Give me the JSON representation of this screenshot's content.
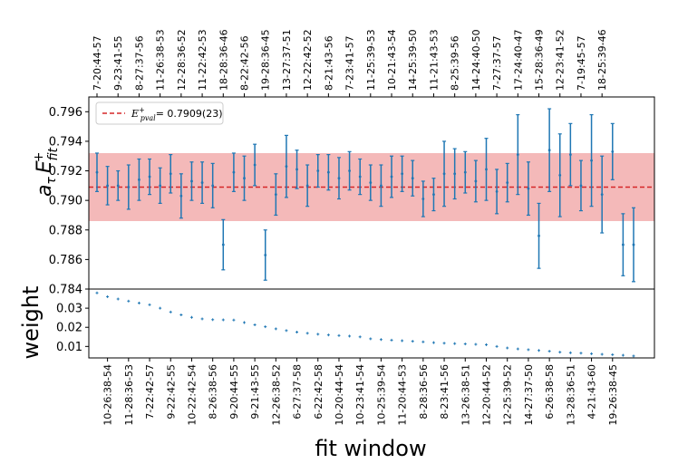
{
  "chart_data": {
    "type": "errorbar",
    "xlabel": "fit window",
    "top_panel": {
      "ylabel": "a_τ E^+_fit",
      "ylim": [
        0.784,
        0.797
      ],
      "yticks": [
        0.784,
        0.786,
        0.788,
        0.79,
        0.792,
        0.794,
        0.796
      ],
      "ytick_labels": [
        "0.784",
        "0.786",
        "0.788",
        "0.790",
        "0.792",
        "0.794",
        "0.796"
      ],
      "band": {
        "center": 0.7909,
        "lower": 0.7886,
        "upper": 0.7932,
        "color": "#f4b9b9"
      },
      "reference_line": {
        "value": 0.7909,
        "color": "#d62728"
      },
      "legend": {
        "prefix": "E",
        "superscript": "+",
        "subscript": "pval",
        "value": "= 0.7909(23)",
        "position": "top-left"
      },
      "top_tick_labels": [
        "7-20:44-57",
        "9-23:41-55",
        "8-27:37-56",
        "11-26:38-53",
        "12-28:36-52",
        "11-22:42-53",
        "18-28:36-46",
        "8-22:42-56",
        "19-28:36-45",
        "13-27:37-51",
        "12-22:42-52",
        "8-21:43-56",
        "7-23:41-57",
        "11-25:39-53",
        "10-21:43-54",
        "14-25:39-50",
        "11-21:43-53",
        "8-25:39-56",
        "14-24:40-50",
        "7-27:37-57",
        "17-24:40-47",
        "15-28:36-49",
        "12-23:41-52",
        "7-19:45-57",
        "18-25:39-46"
      ],
      "points": [
        {
          "value": 0.7919,
          "err": 0.0013
        },
        {
          "value": 0.791,
          "err": 0.0013
        },
        {
          "value": 0.791,
          "err": 0.001
        },
        {
          "value": 0.7909,
          "err": 0.0015
        },
        {
          "value": 0.7914,
          "err": 0.0014
        },
        {
          "value": 0.7916,
          "err": 0.0012
        },
        {
          "value": 0.791,
          "err": 0.0012
        },
        {
          "value": 0.7918,
          "err": 0.0013
        },
        {
          "value": 0.7903,
          "err": 0.0015
        },
        {
          "value": 0.7913,
          "err": 0.0013
        },
        {
          "value": 0.7912,
          "err": 0.0014
        },
        {
          "value": 0.791,
          "err": 0.0015
        },
        {
          "value": 0.787,
          "err": 0.0017
        },
        {
          "value": 0.7919,
          "err": 0.0013
        },
        {
          "value": 0.7915,
          "err": 0.0015
        },
        {
          "value": 0.7924,
          "err": 0.0014
        },
        {
          "value": 0.7863,
          "err": 0.0017
        },
        {
          "value": 0.7904,
          "err": 0.0014
        },
        {
          "value": 0.7923,
          "err": 0.0021
        },
        {
          "value": 0.7921,
          "err": 0.0013
        },
        {
          "value": 0.791,
          "err": 0.0014
        },
        {
          "value": 0.792,
          "err": 0.0011
        },
        {
          "value": 0.7919,
          "err": 0.0012
        },
        {
          "value": 0.7915,
          "err": 0.0014
        },
        {
          "value": 0.792,
          "err": 0.0013
        },
        {
          "value": 0.7916,
          "err": 0.0012
        },
        {
          "value": 0.7912,
          "err": 0.0012
        },
        {
          "value": 0.791,
          "err": 0.0014
        },
        {
          "value": 0.7916,
          "err": 0.0014
        },
        {
          "value": 0.7918,
          "err": 0.0012
        },
        {
          "value": 0.7915,
          "err": 0.0012
        },
        {
          "value": 0.7901,
          "err": 0.0012
        },
        {
          "value": 0.7904,
          "err": 0.0011
        },
        {
          "value": 0.7918,
          "err": 0.0022
        },
        {
          "value": 0.7918,
          "err": 0.0017
        },
        {
          "value": 0.7919,
          "err": 0.0014
        },
        {
          "value": 0.7913,
          "err": 0.0014
        },
        {
          "value": 0.7921,
          "err": 0.0021
        },
        {
          "value": 0.7906,
          "err": 0.0015
        },
        {
          "value": 0.7912,
          "err": 0.0013
        },
        {
          "value": 0.7931,
          "err": 0.0027
        },
        {
          "value": 0.7908,
          "err": 0.0018
        },
        {
          "value": 0.7876,
          "err": 0.0022
        },
        {
          "value": 0.7934,
          "err": 0.0028
        },
        {
          "value": 0.7917,
          "err": 0.0028
        },
        {
          "value": 0.7931,
          "err": 0.0021
        },
        {
          "value": 0.791,
          "err": 0.0017
        },
        {
          "value": 0.7927,
          "err": 0.0031
        },
        {
          "value": 0.7904,
          "err": 0.0026
        },
        {
          "value": 0.7933,
          "err": 0.0019
        },
        {
          "value": 0.787,
          "err": 0.0021
        },
        {
          "value": 0.787,
          "err": 0.0025
        }
      ]
    },
    "bottom_panel": {
      "ylabel": "weight",
      "ylim": [
        0.004,
        0.04
      ],
      "yticks": [
        0.01,
        0.02,
        0.03
      ],
      "ytick_labels": [
        "0.01",
        "0.02",
        "0.03"
      ],
      "bottom_tick_labels": [
        "10-26:38-54",
        "11-28:36-53",
        "7-22:42-57",
        "9-22:42-55",
        "10-22:42-54",
        "8-26:38-56",
        "9-20:44-55",
        "9-21:43-55",
        "12-26:38-52",
        "6-27:37-58",
        "6-22:42-58",
        "10-20:44-54",
        "10-23:41-54",
        "10-25:39-54",
        "11-20:44-53",
        "8-28:36-56",
        "8-23:41-56",
        "13-26:38-51",
        "12-20:44-52",
        "12-25:39-52",
        "14-27:37-50",
        "6-26:38-58",
        "13-28:36-51",
        "4-21:43-60",
        "19-26:38-45"
      ],
      "weights": [
        0.038,
        0.036,
        0.0348,
        0.0337,
        0.0327,
        0.0318,
        0.03,
        0.028,
        0.0265,
        0.0252,
        0.0244,
        0.024,
        0.0239,
        0.0238,
        0.0225,
        0.0213,
        0.0203,
        0.0192,
        0.0183,
        0.0175,
        0.0169,
        0.0164,
        0.016,
        0.0157,
        0.0154,
        0.015,
        0.014,
        0.0136,
        0.0133,
        0.013,
        0.0127,
        0.0124,
        0.012,
        0.0117,
        0.0115,
        0.0113,
        0.0111,
        0.0109,
        0.01,
        0.0092,
        0.0087,
        0.0083,
        0.0079,
        0.0075,
        0.007,
        0.0067,
        0.0065,
        0.0062,
        0.0059,
        0.0057,
        0.0054,
        0.005
      ]
    }
  }
}
